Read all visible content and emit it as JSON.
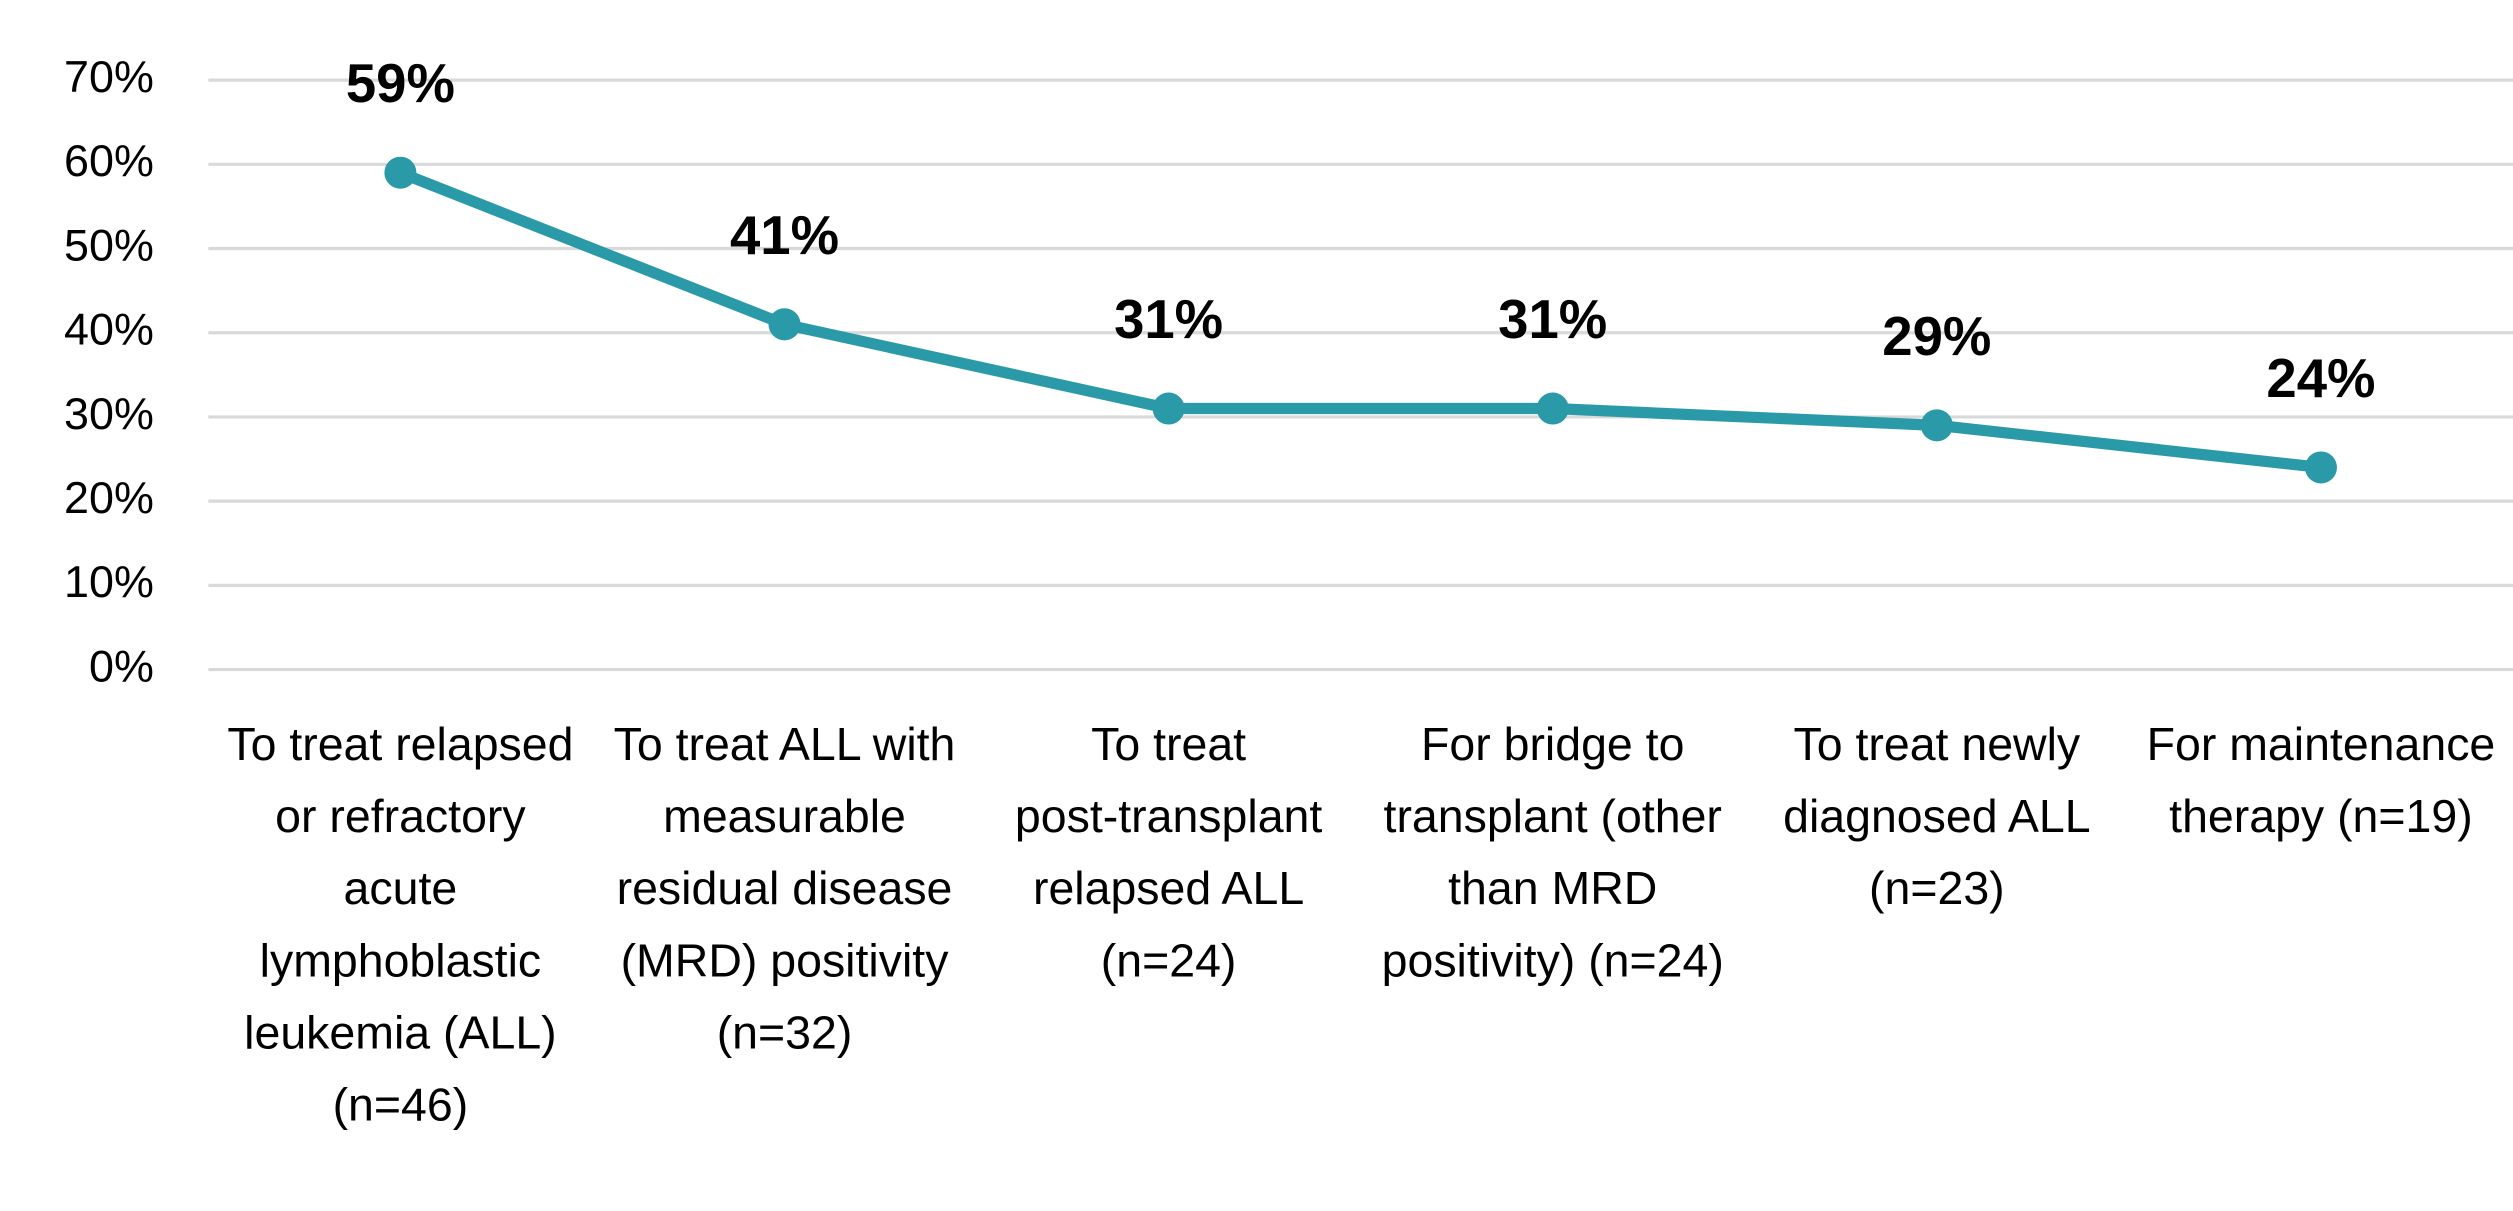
{
  "chart_data": {
    "type": "line",
    "categories": [
      "To treat relapsed or refractory acute lymphoblastic leukemia (ALL) (n=46)",
      "To treat ALL with measurable residual disease (MRD) positivity (n=32)",
      "To treat post-transplant relapsed ALL (n=24)",
      "For bridge to transplant (other than MRD positivity) (n=24)",
      "To treat newly diagnosed ALL (n=23)",
      "For maintenance therapy (n=19)"
    ],
    "values": [
      59,
      41,
      31,
      31,
      29,
      24
    ],
    "value_labels": [
      "59%",
      "41%",
      "31%",
      "31%",
      "29%",
      "24%"
    ],
    "color": "#2a9aa8",
    "ylim": [
      0,
      70
    ],
    "yticks": [
      {
        "value": 0,
        "label": "0%"
      },
      {
        "value": 10,
        "label": "10%"
      },
      {
        "value": 20,
        "label": "20%"
      },
      {
        "value": 30,
        "label": "30%"
      },
      {
        "value": 40,
        "label": "40%"
      },
      {
        "value": 50,
        "label": "50%"
      },
      {
        "value": 60,
        "label": "60%"
      },
      {
        "value": 70,
        "label": "70%"
      }
    ],
    "grid": true
  }
}
